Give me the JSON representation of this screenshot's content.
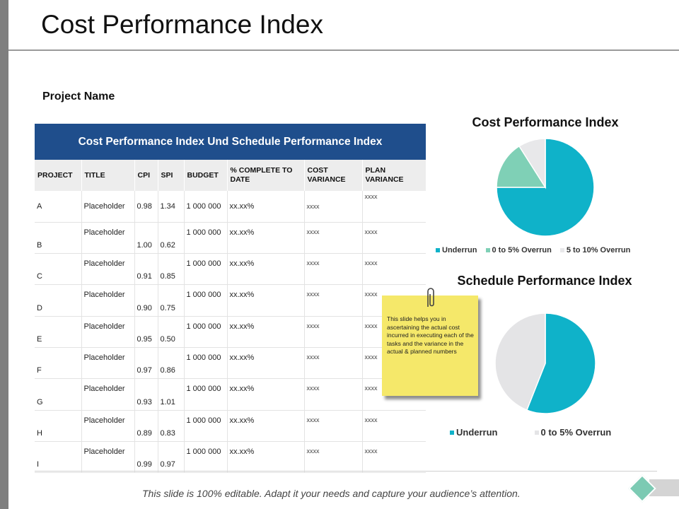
{
  "slide": {
    "title": "Cost Performance Index",
    "project_name": "Project Name",
    "footer": "This slide is 100% editable. Adapt it your needs and capture your audience’s attention."
  },
  "table": {
    "header": "Cost Performance Index Und Schedule Performance Index",
    "columns": [
      "PROJECT",
      "TITLE",
      "CPI",
      "SPI",
      "BUDGET",
      "% COMPLETE TO DATE",
      "COST VARIANCE",
      "PLAN VARIANCE"
    ],
    "rows": [
      {
        "project": "A",
        "title": "Placeholder",
        "cpi": "0.98",
        "spi": "1.34",
        "budget": "1 000 000",
        "complete": "xx.xx%",
        "cost_var": "xxxx",
        "plan_var": "xxxx"
      },
      {
        "project": "B",
        "title": "Placeholder",
        "cpi": "1.00",
        "spi": "0.62",
        "budget": "1 000 000",
        "complete": "xx.xx%",
        "cost_var": "xxxx",
        "plan_var": "xxxx"
      },
      {
        "project": "C",
        "title": "Placeholder",
        "cpi": "0.91",
        "spi": "0.85",
        "budget": "1 000 000",
        "complete": "xx.xx%",
        "cost_var": "xxxx",
        "plan_var": "xxxx"
      },
      {
        "project": "D",
        "title": "Placeholder",
        "cpi": "0.90",
        "spi": "0.75",
        "budget": "1 000 000",
        "complete": "xx.xx%",
        "cost_var": "xxxx",
        "plan_var": "xxxx"
      },
      {
        "project": "E",
        "title": "Placeholder",
        "cpi": "0.95",
        "spi": "0.50",
        "budget": "1 000 000",
        "complete": "xx.xx%",
        "cost_var": "xxxx",
        "plan_var": "xxxx"
      },
      {
        "project": "F",
        "title": "Placeholder",
        "cpi": "0.97",
        "spi": "0.86",
        "budget": "1 000 000",
        "complete": "xx.xx%",
        "cost_var": "xxxx",
        "plan_var": "xxxx"
      },
      {
        "project": "G",
        "title": "Placeholder",
        "cpi": "0.93",
        "spi": "1.01",
        "budget": "1 000 000",
        "complete": "xx.xx%",
        "cost_var": "xxxx",
        "plan_var": "xxxx"
      },
      {
        "project": "H",
        "title": "Placeholder",
        "cpi": "0.89",
        "spi": "0.83",
        "budget": "1 000 000",
        "complete": "xx.xx%",
        "cost_var": "xxxx",
        "plan_var": "xxxx"
      },
      {
        "project": "I",
        "title": "Placeholder",
        "cpi": "0.99",
        "spi": "0.97",
        "budget": "1 000 000",
        "complete": "xx.xx%",
        "cost_var": "xxxx",
        "plan_var": "xxxx"
      }
    ]
  },
  "note": {
    "text": "This slide helps you in ascertaining the actual cost incurred in executing each of the tasks and the variance in the actual & planned numbers"
  },
  "colors": {
    "header_bg": "#1f4e8c",
    "underrun": "#0fb2c9",
    "overrun_0_5": "#7fd0b6",
    "overrun_5_10": "#e8e8ea",
    "overrun_light": "#e4e4e6",
    "note_bg": "#f5e86a"
  },
  "chart_data": [
    {
      "type": "pie",
      "title": "Cost Performance Index",
      "categories": [
        "Underrun",
        "0 to 5% Overrun",
        "5 to 10% Overrun"
      ],
      "values": [
        75,
        16,
        9
      ],
      "colors": [
        "#0fb2c9",
        "#7fd0b6",
        "#e8e8ea"
      ],
      "legend": "bottom"
    },
    {
      "type": "pie",
      "title": "Schedule Performance Index",
      "categories": [
        "Underrun",
        "0 to 5% Overrun"
      ],
      "values": [
        56,
        44
      ],
      "colors": [
        "#0fb2c9",
        "#e4e4e6"
      ],
      "legend": "bottom"
    }
  ]
}
